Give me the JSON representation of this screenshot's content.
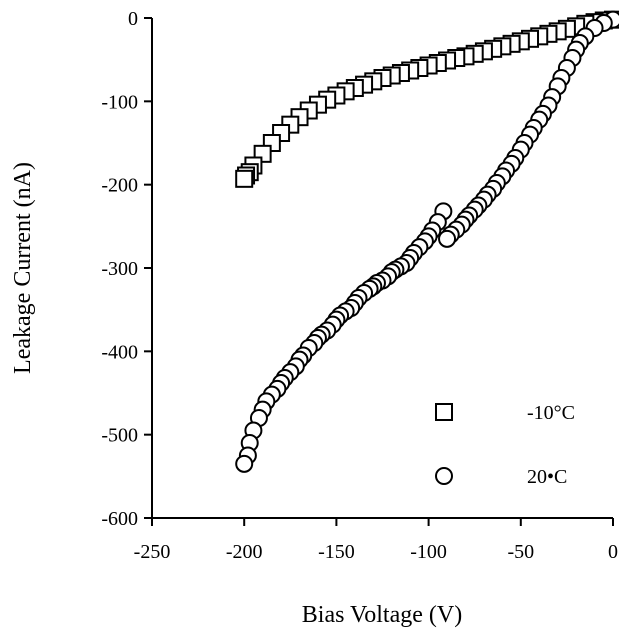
{
  "chart_data": {
    "type": "scatter",
    "title": "",
    "xlabel": "Bias Voltage (V)",
    "ylabel": "Leakage Current (nA)",
    "xlim": [
      -250,
      0
    ],
    "ylim": [
      -600,
      0
    ],
    "xticks": [
      -250,
      -200,
      -150,
      -100,
      -50,
      0
    ],
    "yticks": [
      0,
      -100,
      -200,
      -300,
      -400,
      -500,
      -600
    ],
    "xtick_labels": [
      "-250",
      "-200",
      "-150",
      "-100",
      "-50",
      "0"
    ],
    "ytick_labels": [
      "0",
      "-100",
      "-200",
      "-300",
      "-400",
      "-500",
      "-600"
    ],
    "grid": false,
    "legend_position": "bottom-right",
    "series": [
      {
        "name": "-10°C",
        "marker": "square",
        "x": [
          0,
          -5,
          -10,
          -15,
          -20,
          -25,
          -30,
          -35,
          -40,
          -45,
          -50,
          -55,
          -60,
          -65,
          -70,
          -75,
          -80,
          -85,
          -90,
          -95,
          -100,
          -105,
          -110,
          -115,
          -120,
          -125,
          -130,
          -135,
          -140,
          -145,
          -150,
          -155,
          -160,
          -165,
          -170,
          -175,
          -180,
          -185,
          -190,
          -195,
          -197,
          -199,
          -200
        ],
        "y": [
          -2,
          -3,
          -5,
          -7,
          -10,
          -13,
          -16,
          -19,
          -22,
          -25,
          -28,
          -31,
          -34,
          -37,
          -40,
          -43,
          -46,
          -48,
          -51,
          -54,
          -57,
          -60,
          -63,
          -66,
          -69,
          -72,
          -76,
          -80,
          -84,
          -88,
          -93,
          -98,
          -104,
          -111,
          -119,
          -128,
          -138,
          -150,
          -163,
          -177,
          -185,
          -189,
          -193
        ]
      },
      {
        "name": "20•C",
        "marker": "circle",
        "x": [
          0,
          -5,
          -10,
          -15,
          -18,
          -20,
          -22,
          -25,
          -28,
          -30,
          -33,
          -35,
          -38,
          -40,
          -43,
          -45,
          -48,
          -50,
          -53,
          -55,
          -58,
          -60,
          -63,
          -65,
          -68,
          -70,
          -73,
          -75,
          -78,
          -80,
          -82,
          -85,
          -88,
          -90,
          -92,
          -95,
          -98,
          -100,
          -102,
          -105,
          -108,
          -110,
          -112,
          -115,
          -118,
          -120,
          -122,
          -125,
          -128,
          -130,
          -132,
          -135,
          -138,
          -140,
          -142,
          -145,
          -148,
          -150,
          -152,
          -155,
          -158,
          -160,
          -162,
          -165,
          -168,
          -170,
          -172,
          -175,
          -178,
          -180,
          -182,
          -185,
          -188,
          -190,
          -192,
          -195,
          -197,
          -198,
          -200
        ],
        "y": [
          -2,
          -6,
          -12,
          -22,
          -30,
          -38,
          -48,
          -60,
          -72,
          -82,
          -95,
          -105,
          -115,
          -122,
          -132,
          -140,
          -150,
          -158,
          -168,
          -175,
          -183,
          -190,
          -198,
          -205,
          -212,
          -218,
          -225,
          -230,
          -237,
          -242,
          -248,
          -254,
          -260,
          -265,
          -232,
          -245,
          -255,
          -262,
          -268,
          -275,
          -282,
          -288,
          -294,
          -298,
          -302,
          -305,
          -310,
          -315,
          -318,
          -322,
          -325,
          -330,
          -336,
          -342,
          -348,
          -352,
          -357,
          -362,
          -368,
          -375,
          -380,
          -384,
          -390,
          -396,
          -405,
          -410,
          -418,
          -425,
          -432,
          -438,
          -445,
          -452,
          -460,
          -470,
          -480,
          -495,
          -510,
          -525,
          -535
        ]
      }
    ],
    "legend": [
      {
        "label": "-10°C",
        "marker": "square"
      },
      {
        "label": "20•C",
        "marker": "circle"
      }
    ]
  }
}
